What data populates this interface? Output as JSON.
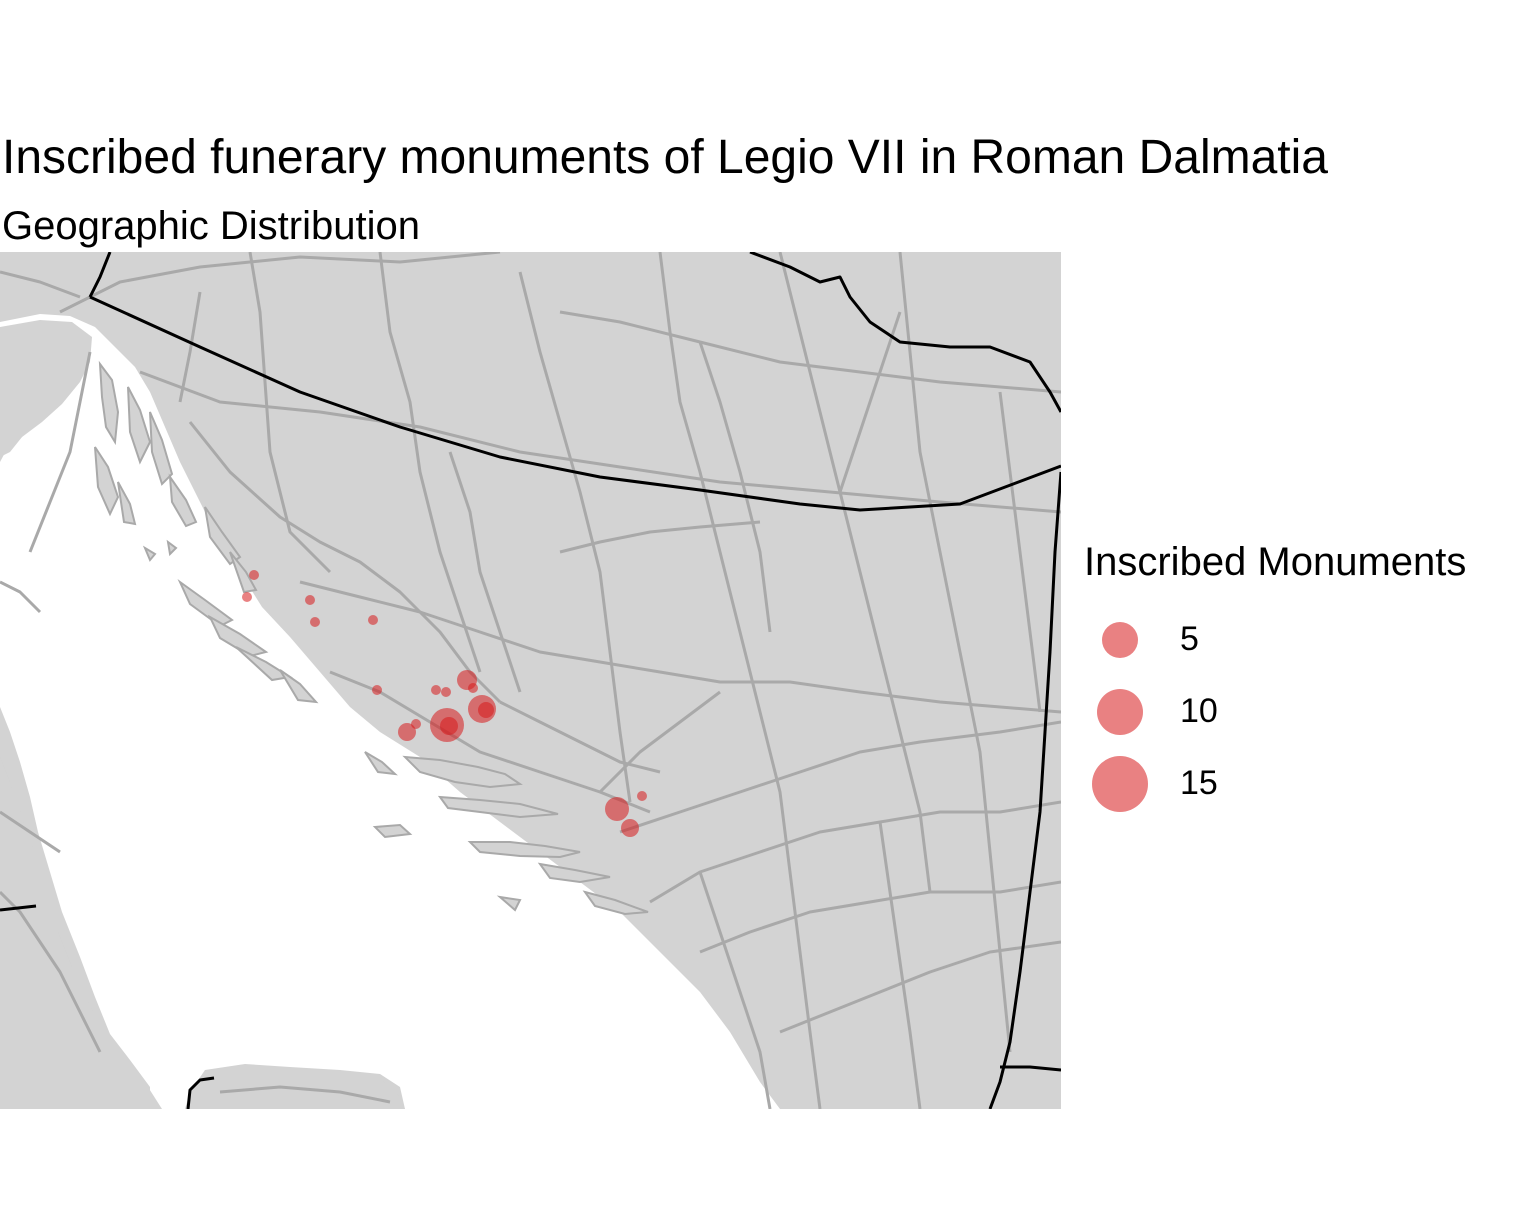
{
  "title": "Inscribed funerary monuments of Legio VII in Roman Dalmatia",
  "subtitle": "Geographic Distribution",
  "legend": {
    "title": "Inscribed Monuments",
    "items": [
      {
        "label": "5",
        "value": 5
      },
      {
        "label": "10",
        "value": 10
      },
      {
        "label": "15",
        "value": 15
      }
    ]
  },
  "colors": {
    "land": "#d3d3d3",
    "sea": "#ffffff",
    "roads": "#a9a9a9",
    "borders": "#000000",
    "points": "#d7191c"
  },
  "map_data": {
    "layers": [
      "land",
      "modern roads",
      "borders",
      "monument findspots"
    ],
    "point_count": 19
  }
}
